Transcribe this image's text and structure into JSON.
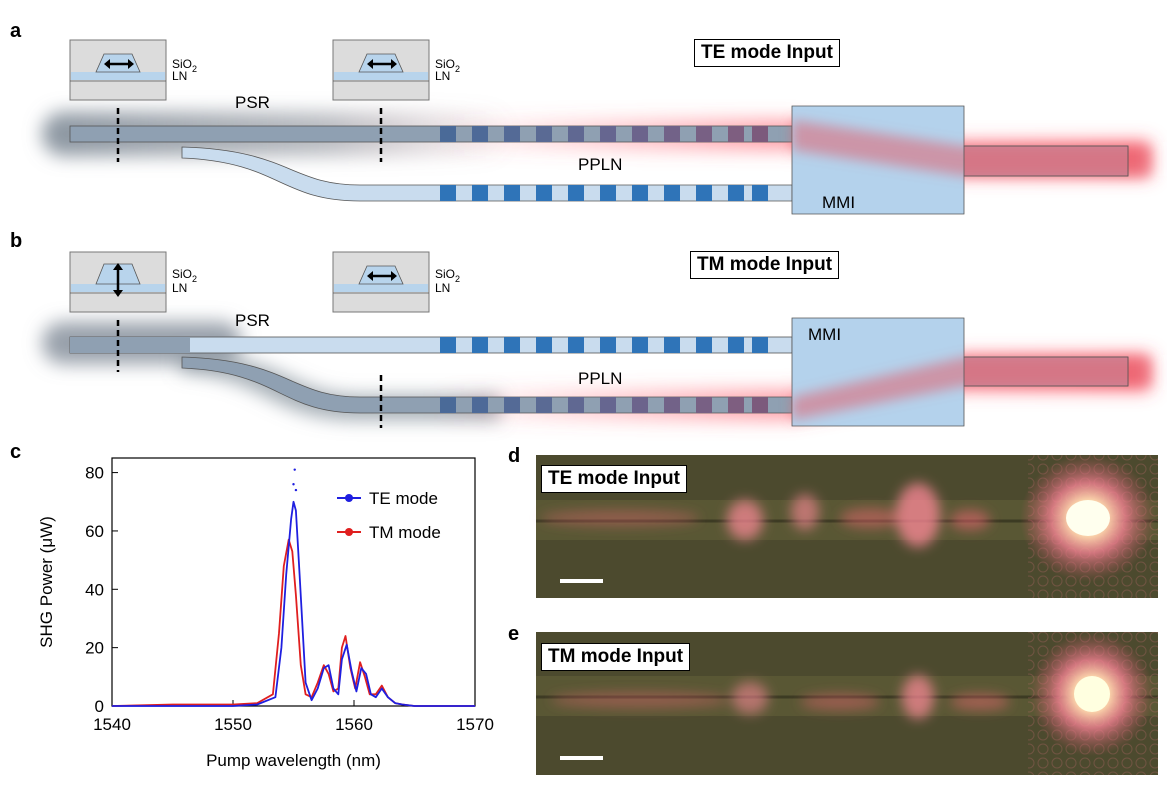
{
  "panels": {
    "a": "a",
    "b": "b",
    "c": "c",
    "d": "d",
    "e": "e"
  },
  "schematic_a": {
    "title": "TE mode Input",
    "psr": "PSR",
    "ppln": "PPLN",
    "mmi": "MMI",
    "sio2": "SiO",
    "sio2_sub": "2",
    "ln": "LN",
    "insets": [
      "TE-horizontal-arrow",
      "TE-horizontal-arrow"
    ]
  },
  "schematic_b": {
    "title": "TM mode Input",
    "psr": "PSR",
    "ppln": "PPLN",
    "mmi": "MMI",
    "sio2": "SiO",
    "sio2_sub": "2",
    "ln": "LN",
    "insets": [
      "TM-vertical-arrow",
      "TE-horizontal-arrow"
    ]
  },
  "chart_data": {
    "type": "line",
    "xlabel": "Pump wavelength (nm)",
    "ylabel": "SHG Power (μW)",
    "xlim": [
      1540,
      1570
    ],
    "ylim": [
      0,
      85
    ],
    "xticks": [
      1540,
      1550,
      1560,
      1570
    ],
    "yticks": [
      0,
      20,
      40,
      60,
      80
    ],
    "legend_position": "top-right",
    "series": [
      {
        "name": "TE mode",
        "color": "#1f1fe0",
        "x": [
          1540,
          1545,
          1550,
          1552,
          1553.5,
          1554.0,
          1554.4,
          1554.8,
          1555.0,
          1555.2,
          1555.5,
          1556.0,
          1556.5,
          1557.0,
          1557.5,
          1557.9,
          1558.3,
          1558.7,
          1559.0,
          1559.4,
          1559.8,
          1560.2,
          1560.6,
          1561.0,
          1561.4,
          1561.8,
          1562.3,
          1562.8,
          1563.4,
          1564.0,
          1565,
          1570
        ],
        "y": [
          0,
          0,
          0,
          0.5,
          3,
          20,
          45,
          64,
          70,
          67,
          45,
          8,
          2,
          6,
          13,
          14,
          6,
          4,
          16,
          21,
          12,
          5,
          13,
          11,
          4,
          3,
          6,
          3,
          1,
          0.5,
          0,
          0
        ]
      },
      {
        "name": "TM mode",
        "color": "#e01f1f",
        "x": [
          1540,
          1545,
          1550,
          1552,
          1553.3,
          1553.8,
          1554.2,
          1554.6,
          1554.9,
          1555.2,
          1555.6,
          1556.0,
          1556.5,
          1557.0,
          1557.5,
          1557.9,
          1558.3,
          1558.7,
          1559.0,
          1559.3,
          1559.7,
          1560.1,
          1560.5,
          1560.9,
          1561.3,
          1561.8,
          1562.3,
          1562.8,
          1563.4,
          1564.0,
          1565,
          1570
        ],
        "y": [
          0,
          0.5,
          0.5,
          1,
          4,
          25,
          48,
          57,
          53,
          38,
          14,
          4,
          3,
          8,
          14,
          11,
          5,
          6,
          20,
          24,
          13,
          6,
          15,
          10,
          4,
          4,
          7,
          3,
          1,
          0.5,
          0,
          0
        ]
      }
    ]
  },
  "image_d": {
    "label": "TE mode Input"
  },
  "image_e": {
    "label": "TM mode Input"
  }
}
